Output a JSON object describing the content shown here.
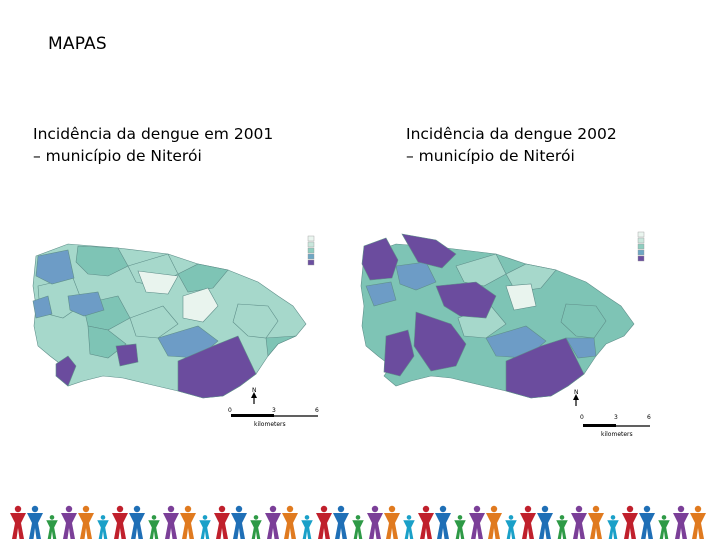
{
  "slide": {
    "title": "MAPAS"
  },
  "maps": [
    {
      "caption_line1": "Incidência da dengue em 2001",
      "caption_line2": "– município de Niterói",
      "scale": {
        "ticks": [
          "0",
          "3",
          "6"
        ],
        "unit": "kilometers"
      },
      "north_label": "N"
    },
    {
      "caption_line1": "Incidência da dengue 2002",
      "caption_line2": "– município de Niterói",
      "scale": {
        "ticks": [
          "0",
          "3",
          "6"
        ],
        "unit": "kilometers"
      },
      "north_label": "N"
    }
  ],
  "legend_colors": [
    "#eaf5ef",
    "#c9e6dc",
    "#8ecdbf",
    "#6ea7c4",
    "#5b7fb0",
    "#6b4fa0"
  ],
  "colors": {
    "very_light": "#e9f4ee",
    "light_teal": "#a6d8cb",
    "teal": "#7ec4b5",
    "blue": "#6d9cc6",
    "purple": "#6b4c9e",
    "border": "#5f8f8a"
  },
  "footer": {
    "figure_colors": [
      "#c0202c",
      "#1f6fb6",
      "#2e9a46",
      "#7b3f98",
      "#e07a1f",
      "#1aa0c8"
    ]
  }
}
